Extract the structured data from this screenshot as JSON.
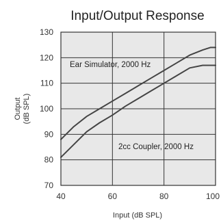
{
  "chart_data": {
    "type": "line",
    "title": "Input/Output Response",
    "xlabel": "Input (dB SPL)",
    "ylabel": [
      "Output",
      "(dB SPL)"
    ],
    "xlim": [
      40,
      100
    ],
    "ylim": [
      70,
      130
    ],
    "x_ticks": [
      40,
      60,
      80,
      100
    ],
    "x_tick_labels": [
      "40",
      "60",
      "80",
      "100"
    ],
    "y_ticks": [
      70,
      80,
      90,
      100,
      110,
      120,
      130
    ],
    "grid": true,
    "plot_background": "#e8e8e8",
    "line_color": "#444444",
    "series": [
      {
        "x": [
          40,
          45,
          50,
          55,
          60,
          65,
          70,
          75,
          80,
          85,
          90,
          95,
          98,
          100
        ],
        "y": [
          88,
          93,
          97,
          100,
          103,
          106,
          109,
          112,
          115,
          118,
          121,
          123,
          124,
          124
        ]
      },
      {
        "x": [
          40,
          45,
          50,
          55,
          60,
          65,
          70,
          75,
          80,
          85,
          90,
          95,
          98,
          100
        ],
        "y": [
          81,
          86,
          91,
          94.5,
          97.5,
          101,
          104,
          107,
          110,
          113,
          116,
          117,
          117,
          117
        ]
      }
    ],
    "annotations": [
      "Ear Simulator, 2000 Hz",
      "2cc Coupler, 2000 Hz"
    ]
  }
}
